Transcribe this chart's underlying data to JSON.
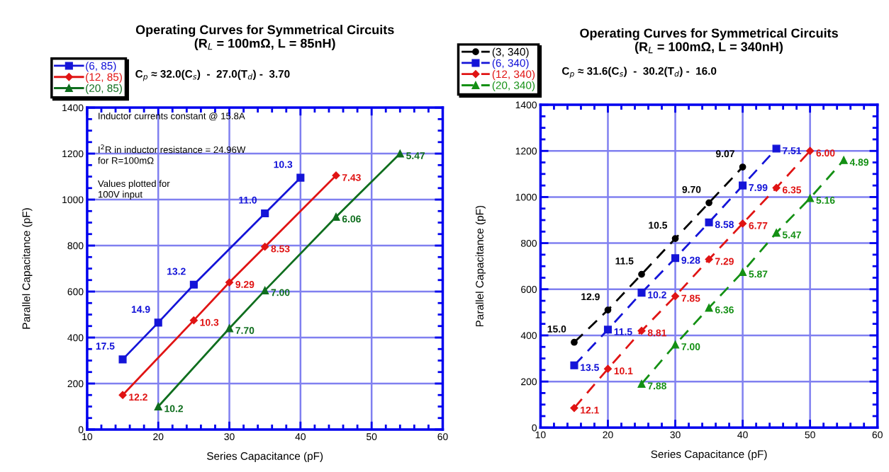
{
  "chart_data": [
    {
      "type": "line",
      "title": "Operating Curves for Symmetrical Circuits",
      "subtitle": "(R$_{L}$ = 100mΩ, L = 85nH)",
      "xlabel": "Series Capacitance (pF)",
      "ylabel": "Parallel Capacitance (pF)",
      "xlim": [
        10,
        60
      ],
      "xticks": [
        10,
        20,
        30,
        40,
        50,
        60
      ],
      "ylim": [
        0,
        1400
      ],
      "yticks": [
        0,
        200,
        400,
        600,
        800,
        1000,
        1200,
        1400
      ],
      "grid": true,
      "legend": "top left",
      "line_style": "solid",
      "annotations": [
        "C$_{p}$ ≈ 32.0(C$_{s}$)  -  27.0(T$_{d}$) -  3.70",
        "Inductor currents constant @ 15.8A",
        "I$^{2}$R in inductor resistance = 24.96W\nfor R=100mΩ",
        "Values plotted for\n100V input",
        {
          "text": "17.5",
          "x": 15,
          "y": 305
        },
        {
          "text": "14.9",
          "x": 20,
          "y": 465
        },
        {
          "text": "13.2",
          "x": 25,
          "y": 630
        },
        {
          "text": "11.0",
          "x": 35,
          "y": 940
        },
        {
          "text": "10.3",
          "x": 40,
          "y": 1095
        },
        {
          "text": "12.2",
          "x": 15,
          "y": 150
        },
        {
          "text": "10.3",
          "x": 25,
          "y": 475
        },
        {
          "text": "9.29",
          "x": 30,
          "y": 640
        },
        {
          "text": "8.53",
          "x": 35,
          "y": 795
        },
        {
          "text": "7.43",
          "x": 45,
          "y": 1105
        },
        {
          "text": "10.2",
          "x": 20,
          "y": 100
        },
        {
          "text": "7.70",
          "x": 30,
          "y": 440
        },
        {
          "text": "7.00",
          "x": 35,
          "y": 605
        },
        {
          "text": "6.06",
          "x": 45,
          "y": 925
        },
        {
          "text": "5.47",
          "x": 54,
          "y": 1200
        }
      ],
      "series": [
        {
          "name": "(6, 85)",
          "color": "#1414d8",
          "marker": "square",
          "x": [
            15,
            20,
            25,
            35,
            40
          ],
          "values": [
            305,
            465,
            630,
            940,
            1095
          ]
        },
        {
          "name": "(12, 85)",
          "color": "#e01414",
          "marker": "diamond",
          "x": [
            15,
            25,
            30,
            35,
            45
          ],
          "values": [
            150,
            475,
            640,
            795,
            1105
          ]
        },
        {
          "name": "(20, 85)",
          "color": "#0f6e1e",
          "marker": "triangle",
          "x": [
            20,
            30,
            35,
            45,
            54
          ],
          "values": [
            100,
            440,
            605,
            925,
            1200
          ]
        }
      ]
    },
    {
      "type": "line",
      "title": "Operating Curves for Symmetrical Circuits",
      "subtitle": "(R$_{L}$ = 100mΩ, L = 340nH)",
      "xlabel": "Series Capacitance (pF)",
      "ylabel": "Parallel Capacitance (pF)",
      "xlim": [
        10,
        60
      ],
      "xticks": [
        10,
        20,
        30,
        40,
        50,
        60
      ],
      "ylim": [
        0,
        1400
      ],
      "yticks": [
        0,
        200,
        400,
        600,
        800,
        1000,
        1200,
        1400
      ],
      "grid": true,
      "legend": "top left",
      "line_style": "dashed",
      "annotations": [
        "C$_{p}$ ≈ 31.6(C$_{s}$)  -  30.2(T$_{d}$) -  16.0",
        {
          "text": "15.0",
          "x": 15,
          "y": 370
        },
        {
          "text": "12.9",
          "x": 20,
          "y": 510
        },
        {
          "text": "11.5",
          "x": 25,
          "y": 665
        },
        {
          "text": "10.5",
          "x": 30,
          "y": 820
        },
        {
          "text": "9.70",
          "x": 35,
          "y": 975
        },
        {
          "text": "9.07",
          "x": 40,
          "y": 1130
        },
        {
          "text": "13.5",
          "x": 15,
          "y": 270
        },
        {
          "text": "11.5",
          "x": 20,
          "y": 425
        },
        {
          "text": "10.2",
          "x": 25,
          "y": 585
        },
        {
          "text": "9.28",
          "x": 30,
          "y": 735
        },
        {
          "text": "8.58",
          "x": 35,
          "y": 890
        },
        {
          "text": "7.99",
          "x": 40,
          "y": 1050
        },
        {
          "text": "7.51",
          "x": 45,
          "y": 1210
        },
        {
          "text": "12.1",
          "x": 15,
          "y": 85
        },
        {
          "text": "10.1",
          "x": 20,
          "y": 255
        },
        {
          "text": "8.81",
          "x": 25,
          "y": 420
        },
        {
          "text": "7.85",
          "x": 30,
          "y": 570
        },
        {
          "text": "7.29",
          "x": 35,
          "y": 730
        },
        {
          "text": "6.77",
          "x": 40,
          "y": 885
        },
        {
          "text": "6.35",
          "x": 45,
          "y": 1040
        },
        {
          "text": "6.00",
          "x": 50,
          "y": 1200
        },
        {
          "text": "7.88",
          "x": 25,
          "y": 190
        },
        {
          "text": "7.00",
          "x": 30,
          "y": 360
        },
        {
          "text": "6.36",
          "x": 35,
          "y": 520
        },
        {
          "text": "5.87",
          "x": 40,
          "y": 675
        },
        {
          "text": "5.47",
          "x": 45,
          "y": 845
        },
        {
          "text": "5.16",
          "x": 50,
          "y": 995
        },
        {
          "text": "4.89",
          "x": 55,
          "y": 1160
        }
      ],
      "series": [
        {
          "name": "(3, 340)",
          "color": "#000000",
          "marker": "circle",
          "x": [
            15,
            20,
            25,
            30,
            35,
            40
          ],
          "values": [
            370,
            510,
            665,
            820,
            975,
            1130
          ]
        },
        {
          "name": "(6, 340)",
          "color": "#1414d8",
          "marker": "square",
          "x": [
            15,
            20,
            25,
            30,
            35,
            40,
            45
          ],
          "values": [
            270,
            425,
            585,
            735,
            890,
            1050,
            1210
          ]
        },
        {
          "name": "(12, 340)",
          "color": "#e01414",
          "marker": "diamond",
          "x": [
            15,
            20,
            25,
            30,
            35,
            40,
            45,
            50
          ],
          "values": [
            85,
            255,
            420,
            570,
            730,
            885,
            1040,
            1200
          ]
        },
        {
          "name": "(20, 340)",
          "color": "#149014",
          "marker": "triangle",
          "x": [
            25,
            30,
            35,
            40,
            45,
            50,
            55
          ],
          "values": [
            190,
            360,
            520,
            675,
            845,
            995,
            1160
          ]
        }
      ]
    }
  ]
}
